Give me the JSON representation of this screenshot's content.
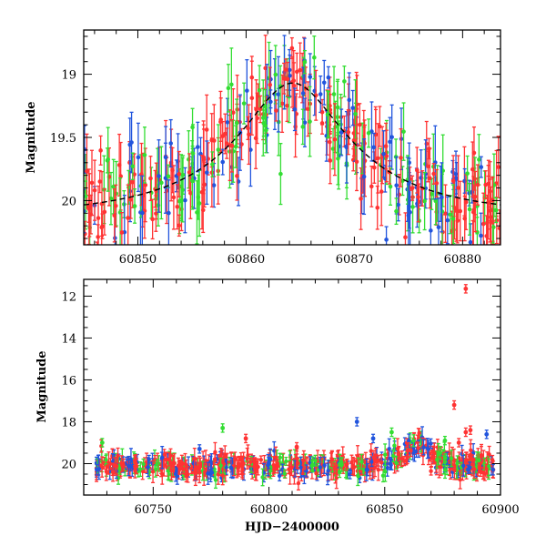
{
  "colors": {
    "g": "#33dd33",
    "r": "#ff3333",
    "b": "#2255dd",
    "model": "#000000"
  },
  "chart_data": [
    {
      "id": "top",
      "type": "scatter",
      "title": "",
      "xlabel": "",
      "ylabel": "Magnitude",
      "xlim": [
        60845,
        60883.5
      ],
      "ylim": [
        20.35,
        18.65
      ],
      "y_inverted": true,
      "xticks": [
        60850,
        60860,
        60870,
        60880
      ],
      "yticks": [
        19,
        19.5,
        20
      ],
      "series": [
        {
          "key": "g",
          "color": "#33dd33"
        },
        {
          "key": "b",
          "color": "#2255dd"
        },
        {
          "key": "r",
          "color": "#ff3333"
        }
      ],
      "model_curve": {
        "type": "microlensing",
        "t0": 60864.3,
        "peak_mag": 19.07,
        "base_mag": 20.12,
        "width_days": 4.5,
        "style": "dashed"
      }
    },
    {
      "id": "bottom",
      "type": "scatter",
      "title": "",
      "xlabel": "HJD−2400000",
      "ylabel": "Magnitude",
      "xlim": [
        60720,
        60900
      ],
      "ylim": [
        21.5,
        11.2
      ],
      "y_inverted": true,
      "xticks": [
        60750,
        60800,
        60850,
        60900
      ],
      "yticks": [
        12,
        14,
        16,
        18,
        20
      ],
      "series": [
        {
          "key": "g",
          "color": "#33dd33"
        },
        {
          "key": "b",
          "color": "#2255dd"
        },
        {
          "key": "r",
          "color": "#ff3333"
        }
      ],
      "outliers": [
        {
          "x": 60885,
          "y": 11.65,
          "series": "r"
        },
        {
          "x": 60880,
          "y": 17.2,
          "series": "r"
        },
        {
          "x": 60885,
          "y": 18.5,
          "series": "r"
        },
        {
          "x": 60887,
          "y": 18.4,
          "series": "r"
        },
        {
          "x": 60894,
          "y": 18.6,
          "series": "b"
        },
        {
          "x": 60882,
          "y": 19.0,
          "series": "r"
        },
        {
          "x": 60728,
          "y": 19.0,
          "series": "g"
        },
        {
          "x": 60780,
          "y": 18.3,
          "series": "g"
        },
        {
          "x": 60790,
          "y": 18.8,
          "series": "r"
        },
        {
          "x": 60838,
          "y": 18.0,
          "series": "b"
        },
        {
          "x": 60853,
          "y": 18.5,
          "series": "g"
        },
        {
          "x": 60770,
          "y": 19.3,
          "series": "b"
        },
        {
          "x": 60812,
          "y": 19.2,
          "series": "r"
        },
        {
          "x": 60845,
          "y": 18.8,
          "series": "b"
        },
        {
          "x": 60876,
          "y": 18.9,
          "series": "g"
        }
      ]
    }
  ]
}
